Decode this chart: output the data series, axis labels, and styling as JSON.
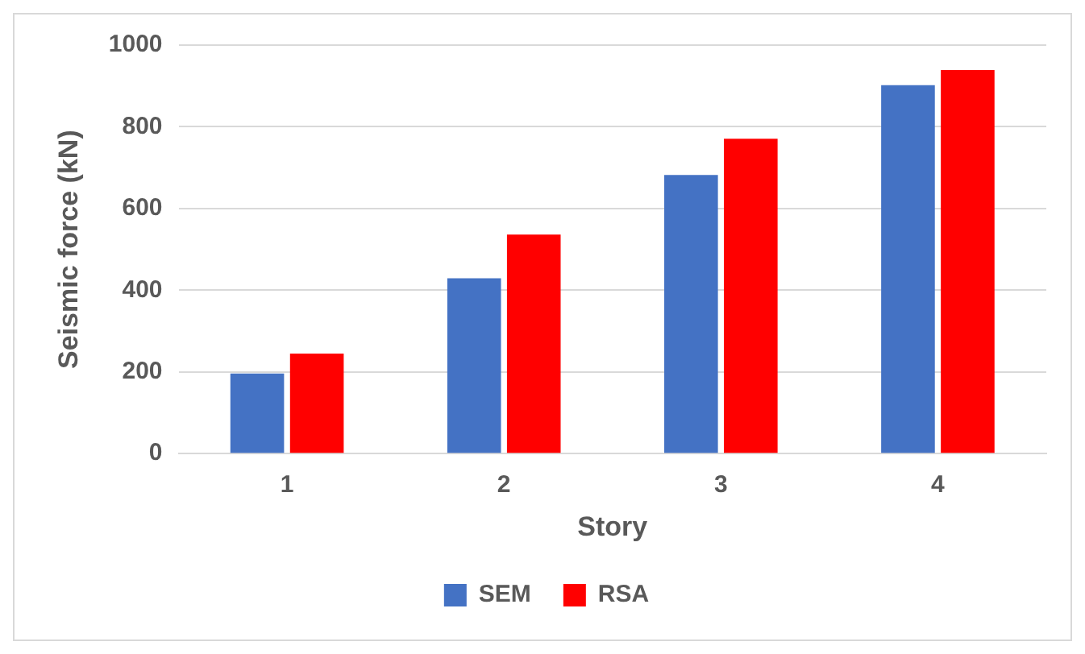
{
  "chart_data": {
    "type": "bar",
    "xlabel": "Story",
    "ylabel": "Seismic force (kN)",
    "categories": [
      "1",
      "2",
      "3",
      "4"
    ],
    "series": [
      {
        "name": "SEM",
        "color": "#4472c4",
        "values": [
          196,
          429,
          682,
          902
        ]
      },
      {
        "name": "RSA",
        "color": "#ff0000",
        "values": [
          245,
          536,
          771,
          939
        ]
      }
    ],
    "ylim": [
      0,
      1000
    ],
    "yticks": [
      0,
      200,
      400,
      600,
      800,
      1000
    ],
    "grid": "y",
    "legend": "bottom"
  }
}
